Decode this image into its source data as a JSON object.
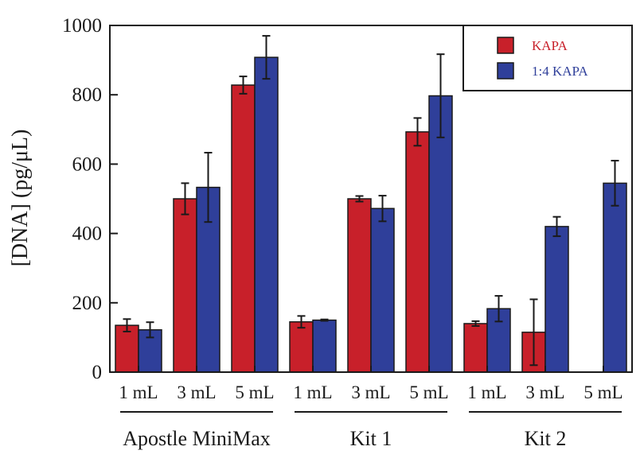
{
  "colors": {
    "kapa": "#c8202a",
    "kapa14": "#2f3f9a",
    "axis": "#1a1a1a"
  },
  "chart_data": {
    "type": "bar",
    "ylabel": "[DNA] (pg/μL)",
    "ylim": [
      0,
      1000
    ],
    "yticks": [
      "0",
      "200",
      "400",
      "600",
      "800",
      "1000"
    ],
    "categories": [
      "1 mL",
      "3 mL",
      "5 mL",
      "1 mL",
      "3 mL",
      "5 mL",
      "1 mL",
      "3 mL",
      "5 mL"
    ],
    "groups": [
      {
        "label": "Apostle MiniMax",
        "span": [
          0,
          2
        ]
      },
      {
        "label": "Kit 1",
        "span": [
          3,
          5
        ]
      },
      {
        "label": "Kit 2",
        "span": [
          6,
          8
        ]
      }
    ],
    "series": [
      {
        "name": "KAPA",
        "color": "#c8202a",
        "values": [
          135,
          500,
          828,
          145,
          500,
          693,
          140,
          115,
          null
        ],
        "errors": [
          18,
          45,
          25,
          17,
          8,
          40,
          7,
          95,
          null
        ]
      },
      {
        "name": "1:4 KAPA",
        "color": "#2f3f9a",
        "values": [
          122,
          533,
          908,
          150,
          472,
          797,
          183,
          420,
          545
        ],
        "errors": [
          22,
          100,
          62,
          2,
          37,
          120,
          37,
          28,
          65
        ]
      }
    ],
    "legend_position": "top-right",
    "grid": false
  }
}
